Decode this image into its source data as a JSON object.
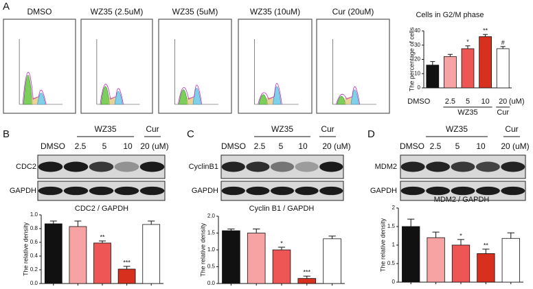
{
  "figure": {
    "panel_a": {
      "letter": "A",
      "flow_titles": [
        "DMSO",
        "WZ35 (2.5uM)",
        "WZ35 (5uM)",
        "WZ35 (10uM)",
        "Cur (20uM)"
      ]
    },
    "blots": [
      {
        "letter": "B",
        "groups": [
          "WZ35",
          "Cur"
        ],
        "lanes": [
          "DMSO",
          "2.5",
          "5",
          "10",
          "20 (uM)"
        ],
        "rows": [
          "CDC2",
          "GAPDH"
        ]
      },
      {
        "letter": "C",
        "groups": [
          "WZ35",
          "Cur"
        ],
        "lanes": [
          "DMSO",
          "2.5",
          "5",
          "10",
          "20 (uM)"
        ],
        "rows": [
          "CyclinB1",
          "GAPDH"
        ]
      },
      {
        "letter": "D",
        "groups": [
          "WZ35",
          "Cur"
        ],
        "lanes": [
          "DMSO",
          "2.5",
          "5",
          "10",
          "20 (uM)"
        ],
        "rows": [
          "MDM2",
          "GAPDH"
        ]
      }
    ]
  },
  "chart_data": [
    {
      "type": "bar",
      "title": "Cells in G2/M phase",
      "y_label": "The percentage of cells",
      "categories": [
        "DMSO",
        "2.5",
        "5",
        "10",
        "20"
      ],
      "unit": "(uM)",
      "groups": [
        "WZ35",
        "Cur"
      ],
      "values": [
        16,
        22,
        27.5,
        36,
        27.5
      ],
      "errors": [
        2.5,
        1.5,
        2,
        1.5,
        1.5
      ],
      "annotations": [
        null,
        null,
        "*",
        "**",
        "#"
      ],
      "colors": [
        "#111111",
        "#f7a3a3",
        "#ee5555",
        "#d8301f",
        "#ffffff"
      ],
      "ylim": [
        0,
        40
      ],
      "yticks": [
        0,
        10,
        20,
        30,
        40
      ]
    },
    {
      "type": "bar",
      "title": "CDC2 / GAPDH",
      "y_label": "The relative density",
      "values": [
        0.87,
        0.83,
        0.59,
        0.21,
        0.86
      ],
      "errors": [
        0.04,
        0.08,
        0.03,
        0.04,
        0.05
      ],
      "annotations": [
        null,
        null,
        "**",
        "***",
        null
      ],
      "colors": [
        "#111111",
        "#f7a3a3",
        "#ee5555",
        "#d8301f",
        "#ffffff"
      ],
      "ylim": [
        0,
        1
      ],
      "yticks": [
        {
          "value": 0,
          "label": "0.0"
        },
        0.2,
        0.4,
        0.6,
        0.8,
        {
          "value": 1,
          "label": "1.0"
        }
      ]
    },
    {
      "type": "bar",
      "title": "Cyclin B1 / GAPDH",
      "y_label": "The relative density",
      "values": [
        1.57,
        1.5,
        1.0,
        0.15,
        1.33
      ],
      "errors": [
        0.05,
        0.12,
        0.08,
        0.07,
        0.08
      ],
      "annotations": [
        null,
        null,
        "*",
        "***",
        null
      ],
      "colors": [
        "#111111",
        "#f7a3a3",
        "#ee5555",
        "#d8301f",
        "#ffffff"
      ],
      "ylim": [
        0,
        2
      ],
      "yticks": [
        {
          "value": 0,
          "label": "0.0"
        },
        0.5,
        {
          "value": 1,
          "label": "1.0"
        },
        1.5,
        {
          "value": 2,
          "label": "2.0"
        }
      ]
    },
    {
      "type": "bar",
      "title": "MDM2 / GAPDH",
      "y_label": "The relative density",
      "values": [
        1.5,
        1.2,
        1.0,
        0.77,
        1.18
      ],
      "errors": [
        0.2,
        0.15,
        0.15,
        0.12,
        0.15
      ],
      "annotations": [
        null,
        null,
        "*",
        "**",
        null
      ],
      "colors": [
        "#111111",
        "#f7a3a3",
        "#ee5555",
        "#d8301f",
        "#ffffff"
      ],
      "ylim": [
        0,
        2
      ],
      "yticks": [
        0,
        0.5,
        1,
        1.5,
        2
      ]
    }
  ]
}
